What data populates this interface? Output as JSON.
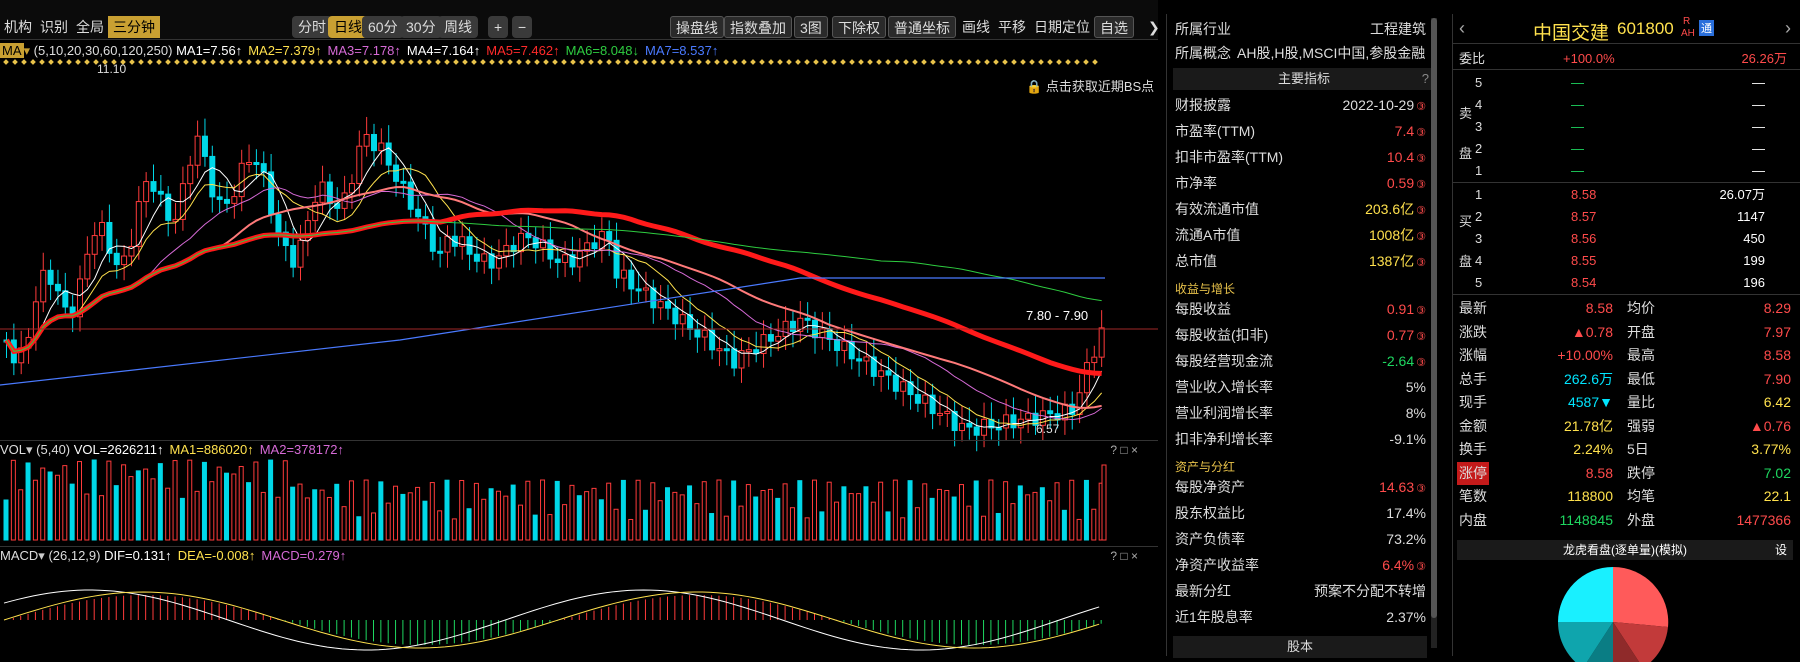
{
  "toolbar": {
    "left": [
      "机构",
      "识别",
      "全局"
    ],
    "active_tab": "三分钟",
    "periods": [
      "分时",
      "日线",
      "60分",
      "30分",
      "周线"
    ],
    "active_period": "日线",
    "zoom_in": "+",
    "zoom_out": "−",
    "right": [
      "操盘线",
      "指数叠加",
      "3图",
      "下除权",
      "普通坐标",
      "画线",
      "平移",
      "日期定位",
      "自选"
    ]
  },
  "ma_legend": {
    "prefix": "MA",
    "params": "(5,10,20,30,60,120,250)",
    "items": [
      {
        "text": "MA1=7.56↑",
        "color": "#ffffff"
      },
      {
        "text": "MA2=7.379↑",
        "color": "#ffe14d"
      },
      {
        "text": "MA3=7.178↑",
        "color": "#d66ad6"
      },
      {
        "text": "MA4=7.164↑",
        "color": "#ffffff"
      },
      {
        "text": "MA5=7.462↑",
        "color": "#ff2a2a"
      },
      {
        "text": "MA6=8.048↓",
        "color": "#2ecc40"
      },
      {
        "text": "MA7=8.537↑",
        "color": "#4a7aff"
      }
    ]
  },
  "price_chart": {
    "high_label": "11.10",
    "low_label": "6.57",
    "range_label": "7.80 - 7.90",
    "lock_note": "点击获取近期BS点"
  },
  "vol_legend": {
    "name": "VOL",
    "params": "(5,40)",
    "items": [
      {
        "text": "VOL=2626211↑",
        "color": "#ffffff"
      },
      {
        "text": "MA1=886020↑",
        "color": "#ffe14d"
      },
      {
        "text": "MA2=378172↑",
        "color": "#d66ad6"
      }
    ]
  },
  "macd_legend": {
    "name": "MACD",
    "params": "(26,12,9)",
    "items": [
      {
        "text": "DIF=0.131↑",
        "color": "#ffffff"
      },
      {
        "text": "DEA=-0.008↑",
        "color": "#ffe14d"
      },
      {
        "text": "MACD=0.279↑",
        "color": "#d66ad6"
      }
    ]
  },
  "industry": {
    "label": "所属行业",
    "value": "工程建筑"
  },
  "concept": {
    "label": "所属概念",
    "value": "AH股,H股,MSCI中国,参股金融..."
  },
  "main_indicators_title": "主要指标",
  "indicators": [
    {
      "label": "财报披露",
      "value": "2022-10-29",
      "color": "#dddddd"
    },
    {
      "label": "市盈率(TTM)",
      "value": "7.4",
      "color": "#ff4b4b"
    },
    {
      "label": "扣非市盈率(TTM)",
      "value": "10.4",
      "color": "#ff4b4b"
    },
    {
      "label": "市净率",
      "value": "0.59",
      "color": "#ff4b4b"
    },
    {
      "label": "有效流通市值",
      "value": "203.6亿",
      "color": "#ffe14d"
    },
    {
      "label": "流通A市值",
      "value": "1008亿",
      "color": "#ffe14d"
    },
    {
      "label": "总市值",
      "value": "1387亿",
      "color": "#ffe14d"
    }
  ],
  "section_growth": "收益与增长",
  "growth": [
    {
      "label": "每股收益",
      "value": "0.91",
      "color": "#ff4b4b"
    },
    {
      "label": "每股收益(扣非)",
      "value": "0.77",
      "color": "#ff4b4b"
    },
    {
      "label": "每股经营现金流",
      "value": "-2.64",
      "color": "#1ed760"
    },
    {
      "label": "营业收入增长率",
      "value": "5%",
      "color": "#dddddd"
    },
    {
      "label": "营业利润增长率",
      "value": "8%",
      "color": "#dddddd"
    },
    {
      "label": "扣非净利增长率",
      "value": "-9.1%",
      "color": "#dddddd"
    }
  ],
  "section_assets": "资产与分红",
  "assets": [
    {
      "label": "每股净资产",
      "value": "14.63",
      "color": "#ff4b4b"
    },
    {
      "label": "股东权益比",
      "value": "17.4%",
      "color": "#dddddd"
    },
    {
      "label": "资产负债率",
      "value": "73.2%",
      "color": "#dddddd"
    },
    {
      "label": "净资产收益率",
      "value": "6.4%",
      "color": "#ff4b4b"
    },
    {
      "label": "最新分红",
      "value": "预案不分配不转增",
      "color": "#dddddd"
    },
    {
      "label": "近1年股息率",
      "value": "2.37%",
      "color": "#dddddd"
    }
  ],
  "equity_tab": "股本",
  "stock": {
    "name": "中国交建",
    "code": "601800",
    "badge_r": "R",
    "badge_ah": "AH",
    "badge_tong": "通"
  },
  "weibi": {
    "label": "委比",
    "pct": "+100.0%",
    "amount": "26.26万"
  },
  "sell_side_label": [
    "卖",
    "盘"
  ],
  "buy_side_label": [
    "买",
    "盘"
  ],
  "sells": [
    {
      "level": "5",
      "price": "—",
      "vol": "—"
    },
    {
      "level": "4",
      "price": "—",
      "vol": "—"
    },
    {
      "level": "3",
      "price": "—",
      "vol": "—"
    },
    {
      "level": "2",
      "price": "—",
      "vol": "—"
    },
    {
      "level": "1",
      "price": "—",
      "vol": "—"
    }
  ],
  "buys": [
    {
      "level": "1",
      "price": "8.58",
      "vol": "26.07万"
    },
    {
      "level": "2",
      "price": "8.57",
      "vol": "1147"
    },
    {
      "level": "3",
      "price": "8.56",
      "vol": "450"
    },
    {
      "level": "4",
      "price": "8.55",
      "vol": "199"
    },
    {
      "level": "5",
      "price": "8.54",
      "vol": "196"
    }
  ],
  "quote": [
    [
      {
        "l": "最新",
        "v": "8.58",
        "c": "#ff4b4b"
      },
      {
        "l": "均价",
        "v": "8.29",
        "c": "#ff4b4b"
      }
    ],
    [
      {
        "l": "涨跌",
        "v": "▲0.78",
        "c": "#ff4b4b"
      },
      {
        "l": "开盘",
        "v": "7.97",
        "c": "#ff4b4b"
      }
    ],
    [
      {
        "l": "涨幅",
        "v": "+10.00%",
        "c": "#ff4b4b"
      },
      {
        "l": "最高",
        "v": "8.58",
        "c": "#ff4b4b"
      }
    ],
    [
      {
        "l": "总手",
        "v": "262.6万",
        "c": "#00e5ff"
      },
      {
        "l": "最低",
        "v": "7.90",
        "c": "#ff4b4b"
      }
    ],
    [
      {
        "l": "现手",
        "v": "4587▼",
        "c": "#00e5ff"
      },
      {
        "l": "量比",
        "v": "6.42",
        "c": "#ffe14d"
      }
    ],
    [
      {
        "l": "金额",
        "v": "21.78亿",
        "c": "#ffe14d"
      },
      {
        "l": "强弱",
        "v": "▲0.76",
        "c": "#ff4b4b"
      }
    ],
    [
      {
        "l": "换手",
        "v": "2.24%",
        "c": "#ffe14d"
      },
      {
        "l": "5日",
        "v": "3.77%",
        "c": "#ffe14d"
      }
    ],
    [
      {
        "l": "涨停",
        "v": "8.58",
        "c": "#ff4b4b"
      },
      {
        "l": "跌停",
        "v": "7.02",
        "c": "#1ed760"
      }
    ],
    [
      {
        "l": "笔数",
        "v": "118800",
        "c": "#ffe14d"
      },
      {
        "l": "均笔",
        "v": "22.1",
        "c": "#ffe14d"
      }
    ],
    [
      {
        "l": "内盘",
        "v": "1148845",
        "c": "#1ed760"
      },
      {
        "l": "外盘",
        "v": "1477366",
        "c": "#ff4b4b"
      }
    ]
  ],
  "dragon": {
    "title": "龙虎看盘(逐单量)(模拟)",
    "setting": "设"
  }
}
